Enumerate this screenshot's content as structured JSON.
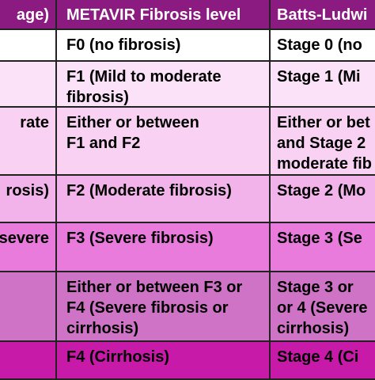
{
  "colors": {
    "header_bg": "#8b1b80",
    "row_backgrounds": [
      "#ffffff",
      "#fbe2f8",
      "#f8d1f3",
      "#f1b3ea",
      "#e87bdc",
      "#cf73c6",
      "#c81aa8"
    ]
  },
  "table": {
    "headers": [
      "age)",
      "METAVIR Fibrosis level",
      "Batts-Ludwi"
    ],
    "rows": [
      [
        "",
        "F0 (no fibrosis)",
        "Stage 0 (no"
      ],
      [
        "",
        "F1 (Mild to moderate\nfibrosis)",
        "Stage 1 (Mi"
      ],
      [
        "rate",
        "Either or between\nF1 and F2",
        "Either or bet\nand Stage 2\nmoderate fib"
      ],
      [
        "rosis)",
        "F2  (Moderate fibrosis)",
        "Stage 2 (Mo"
      ],
      [
        "severe",
        "F3 (Severe fibrosis)",
        "Stage 3 (Se"
      ],
      [
        "",
        "Either or between F3 or\nF4 (Severe fibrosis or\ncirrhosis)",
        "Stage 3 or\nor 4 (Severe\ncirrhosis)"
      ],
      [
        "",
        "F4 (Cirrhosis)",
        "Stage 4 (Ci"
      ]
    ]
  }
}
